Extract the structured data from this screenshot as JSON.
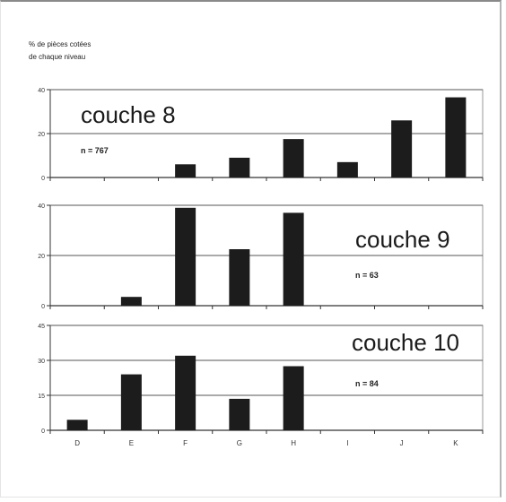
{
  "chart_data": {
    "type": "bar",
    "ylabel": [
      "% de pièces cotées",
      "de chaque niveau"
    ],
    "categories": [
      "D",
      "E",
      "F",
      "G",
      "H",
      "I",
      "J",
      "K"
    ],
    "panels": [
      {
        "title": "couche 8",
        "n_label": "n = 767",
        "ylim": [
          0,
          40
        ],
        "yticks": [
          0,
          20,
          40
        ],
        "values": [
          0,
          0,
          6,
          9,
          17.5,
          7,
          26,
          36.5
        ]
      },
      {
        "title": "couche 9",
        "n_label": "n = 63",
        "ylim": [
          0,
          40
        ],
        "yticks": [
          0,
          20,
          40
        ],
        "values": [
          0,
          3.5,
          39,
          22.5,
          37,
          0,
          0,
          0
        ]
      },
      {
        "title": "couche 10",
        "n_label": "n = 84",
        "ylim": [
          0,
          45
        ],
        "yticks": [
          0,
          15,
          30,
          45
        ],
        "values": [
          4.5,
          24,
          32,
          13.5,
          27.5,
          0,
          0,
          0
        ]
      }
    ],
    "colors": {
      "bar": "#1c1c1c",
      "grid": "#555555",
      "panel_border": "#999999"
    }
  }
}
